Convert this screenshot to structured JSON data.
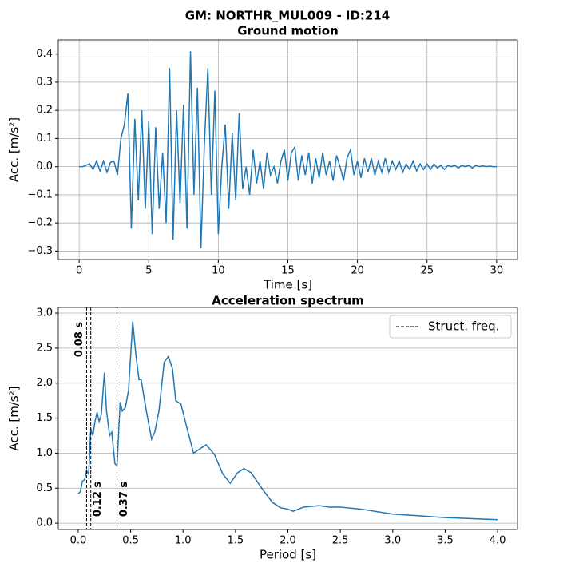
{
  "suptitle": "GM: NORTHR_MUL009 - ID:214",
  "chart_data": [
    {
      "type": "line",
      "title": "Ground motion",
      "xlabel": "Time [s]",
      "ylabel": "Acc. [m/s²]",
      "color": "#1f77b4",
      "grid": true,
      "xlim": [
        -1.5,
        31.5
      ],
      "ylim": [
        -0.33,
        0.45
      ],
      "xticks": [
        0,
        5,
        10,
        15,
        20,
        25,
        30
      ],
      "yticks": [
        {
          "value": -0.3,
          "label": "−0.3"
        },
        {
          "value": -0.2,
          "label": "−0.2"
        },
        {
          "value": -0.1,
          "label": "−0.1"
        },
        {
          "value": 0,
          "label": "0.0"
        },
        0.1,
        0.2,
        0.3,
        0.4
      ],
      "x": [
        0,
        0.25,
        0.5,
        0.75,
        1,
        1.25,
        1.5,
        1.75,
        2,
        2.25,
        2.5,
        2.75,
        3,
        3.25,
        3.5,
        3.75,
        4,
        4.25,
        4.5,
        4.75,
        5,
        5.25,
        5.5,
        5.75,
        6,
        6.25,
        6.5,
        6.75,
        7,
        7.25,
        7.5,
        7.75,
        8,
        8.25,
        8.5,
        8.75,
        9,
        9.25,
        9.5,
        9.75,
        10,
        10.25,
        10.5,
        10.75,
        11,
        11.25,
        11.5,
        11.75,
        12,
        12.25,
        12.5,
        12.75,
        13,
        13.25,
        13.5,
        13.75,
        14,
        14.25,
        14.5,
        14.75,
        15,
        15.25,
        15.5,
        15.75,
        16,
        16.25,
        16.5,
        16.75,
        17,
        17.25,
        17.5,
        17.75,
        18,
        18.25,
        18.5,
        18.75,
        19,
        19.25,
        19.5,
        19.75,
        20,
        20.25,
        20.5,
        20.75,
        21,
        21.25,
        21.5,
        21.75,
        22,
        22.25,
        22.5,
        22.75,
        23,
        23.25,
        23.5,
        23.75,
        24,
        24.25,
        24.5,
        24.75,
        25,
        25.25,
        25.5,
        25.75,
        26,
        26.25,
        26.5,
        26.75,
        27,
        27.25,
        27.5,
        27.75,
        28,
        28.25,
        28.5,
        28.75,
        29,
        29.25,
        29.5,
        29.75,
        30
      ],
      "values": [
        0,
        0,
        0.005,
        0.01,
        -0.01,
        0.02,
        -0.015,
        0.02,
        -0.02,
        0.015,
        0.02,
        -0.03,
        0.1,
        0.15,
        0.26,
        -0.22,
        0.17,
        -0.12,
        0.2,
        -0.15,
        0.16,
        -0.24,
        0.14,
        -0.15,
        0.05,
        -0.2,
        0.35,
        -0.26,
        0.2,
        -0.13,
        0.22,
        -0.22,
        0.41,
        -0.1,
        0.28,
        -0.29,
        0.08,
        0.35,
        -0.1,
        0.27,
        -0.24,
        0,
        0.15,
        -0.15,
        0.12,
        -0.12,
        0.19,
        -0.08,
        0,
        -0.1,
        0.06,
        -0.06,
        0.02,
        -0.08,
        0.05,
        -0.03,
        0,
        -0.06,
        0.02,
        0.06,
        -0.05,
        0.05,
        0.07,
        -0.05,
        0.04,
        -0.03,
        0.05,
        -0.06,
        0.03,
        -0.04,
        0.05,
        -0.03,
        0.02,
        -0.05,
        0.04,
        0,
        -0.05,
        0.03,
        0.06,
        -0.03,
        0.02,
        -0.04,
        0.03,
        -0.02,
        0.03,
        -0.03,
        0.02,
        -0.02,
        0.03,
        -0.02,
        0.02,
        -0.01,
        0.02,
        -0.02,
        0.01,
        -0.01,
        0.02,
        -0.015,
        0.01,
        -0.01,
        0.01,
        -0.01,
        0.01,
        -0.005,
        0.005,
        -0.01,
        0.005,
        0,
        0.005,
        -0.005,
        0.005,
        0,
        0.005,
        -0.005,
        0.005,
        0,
        0.003,
        0,
        0.002,
        0,
        0
      ]
    },
    {
      "type": "line",
      "title": "Acceleration spectrum",
      "xlabel": "Period [s]",
      "ylabel": "Acc. [m/s²]",
      "color": "#1f77b4",
      "grid": "y",
      "legend": "upper right",
      "xlim": [
        -0.19,
        4.19
      ],
      "ylim": [
        -0.09,
        3.08
      ],
      "xticks": [
        {
          "value": 0,
          "label": "0.0"
        },
        0.5,
        {
          "value": 1,
          "label": "1.0"
        },
        1.5,
        {
          "value": 2,
          "label": "2.0"
        },
        2.5,
        {
          "value": 3,
          "label": "3.0"
        },
        3.5,
        {
          "value": 4,
          "label": "4.0"
        }
      ],
      "yticks": [
        {
          "value": 0,
          "label": "0.0"
        },
        0.5,
        {
          "value": 1,
          "label": "1.0"
        },
        1.5,
        {
          "value": 2,
          "label": "2.0"
        },
        2.5,
        {
          "value": 3,
          "label": "3.0"
        }
      ],
      "x": [
        0,
        0.02,
        0.04,
        0.06,
        0.08,
        0.1,
        0.12,
        0.14,
        0.16,
        0.18,
        0.2,
        0.22,
        0.25,
        0.27,
        0.3,
        0.32,
        0.35,
        0.37,
        0.4,
        0.42,
        0.45,
        0.48,
        0.52,
        0.55,
        0.58,
        0.6,
        0.65,
        0.7,
        0.73,
        0.77,
        0.82,
        0.86,
        0.9,
        0.93,
        0.98,
        1.03,
        1.1,
        1.15,
        1.22,
        1.3,
        1.38,
        1.45,
        1.52,
        1.58,
        1.65,
        1.75,
        1.85,
        1.93,
        2,
        2.05,
        2.15,
        2.3,
        2.4,
        2.5,
        2.7,
        3,
        3.5,
        4
      ],
      "values": [
        0.42,
        0.45,
        0.6,
        0.62,
        0.75,
        0.7,
        1.35,
        1.25,
        1.45,
        1.58,
        1.45,
        1.55,
        2.15,
        1.6,
        1.25,
        1.3,
        0.85,
        0.82,
        1.73,
        1.6,
        1.65,
        1.9,
        2.88,
        2.4,
        2.05,
        2.05,
        1.6,
        1.2,
        1.3,
        1.6,
        2.3,
        2.38,
        2.2,
        1.75,
        1.7,
        1.4,
        1,
        1.05,
        1.12,
        0.98,
        0.7,
        0.57,
        0.72,
        0.78,
        0.72,
        0.5,
        0.3,
        0.22,
        0.2,
        0.17,
        0.23,
        0.25,
        0.23,
        0.23,
        0.2,
        0.13,
        0.08,
        0.05
      ],
      "vlines": {
        "name": "Struct. freq.",
        "color": "#000000",
        "values": [
          0.08,
          0.12,
          0.37
        ],
        "value_labels": [
          "0.08 s",
          "0.12 s",
          "0.37 s"
        ]
      }
    }
  ]
}
